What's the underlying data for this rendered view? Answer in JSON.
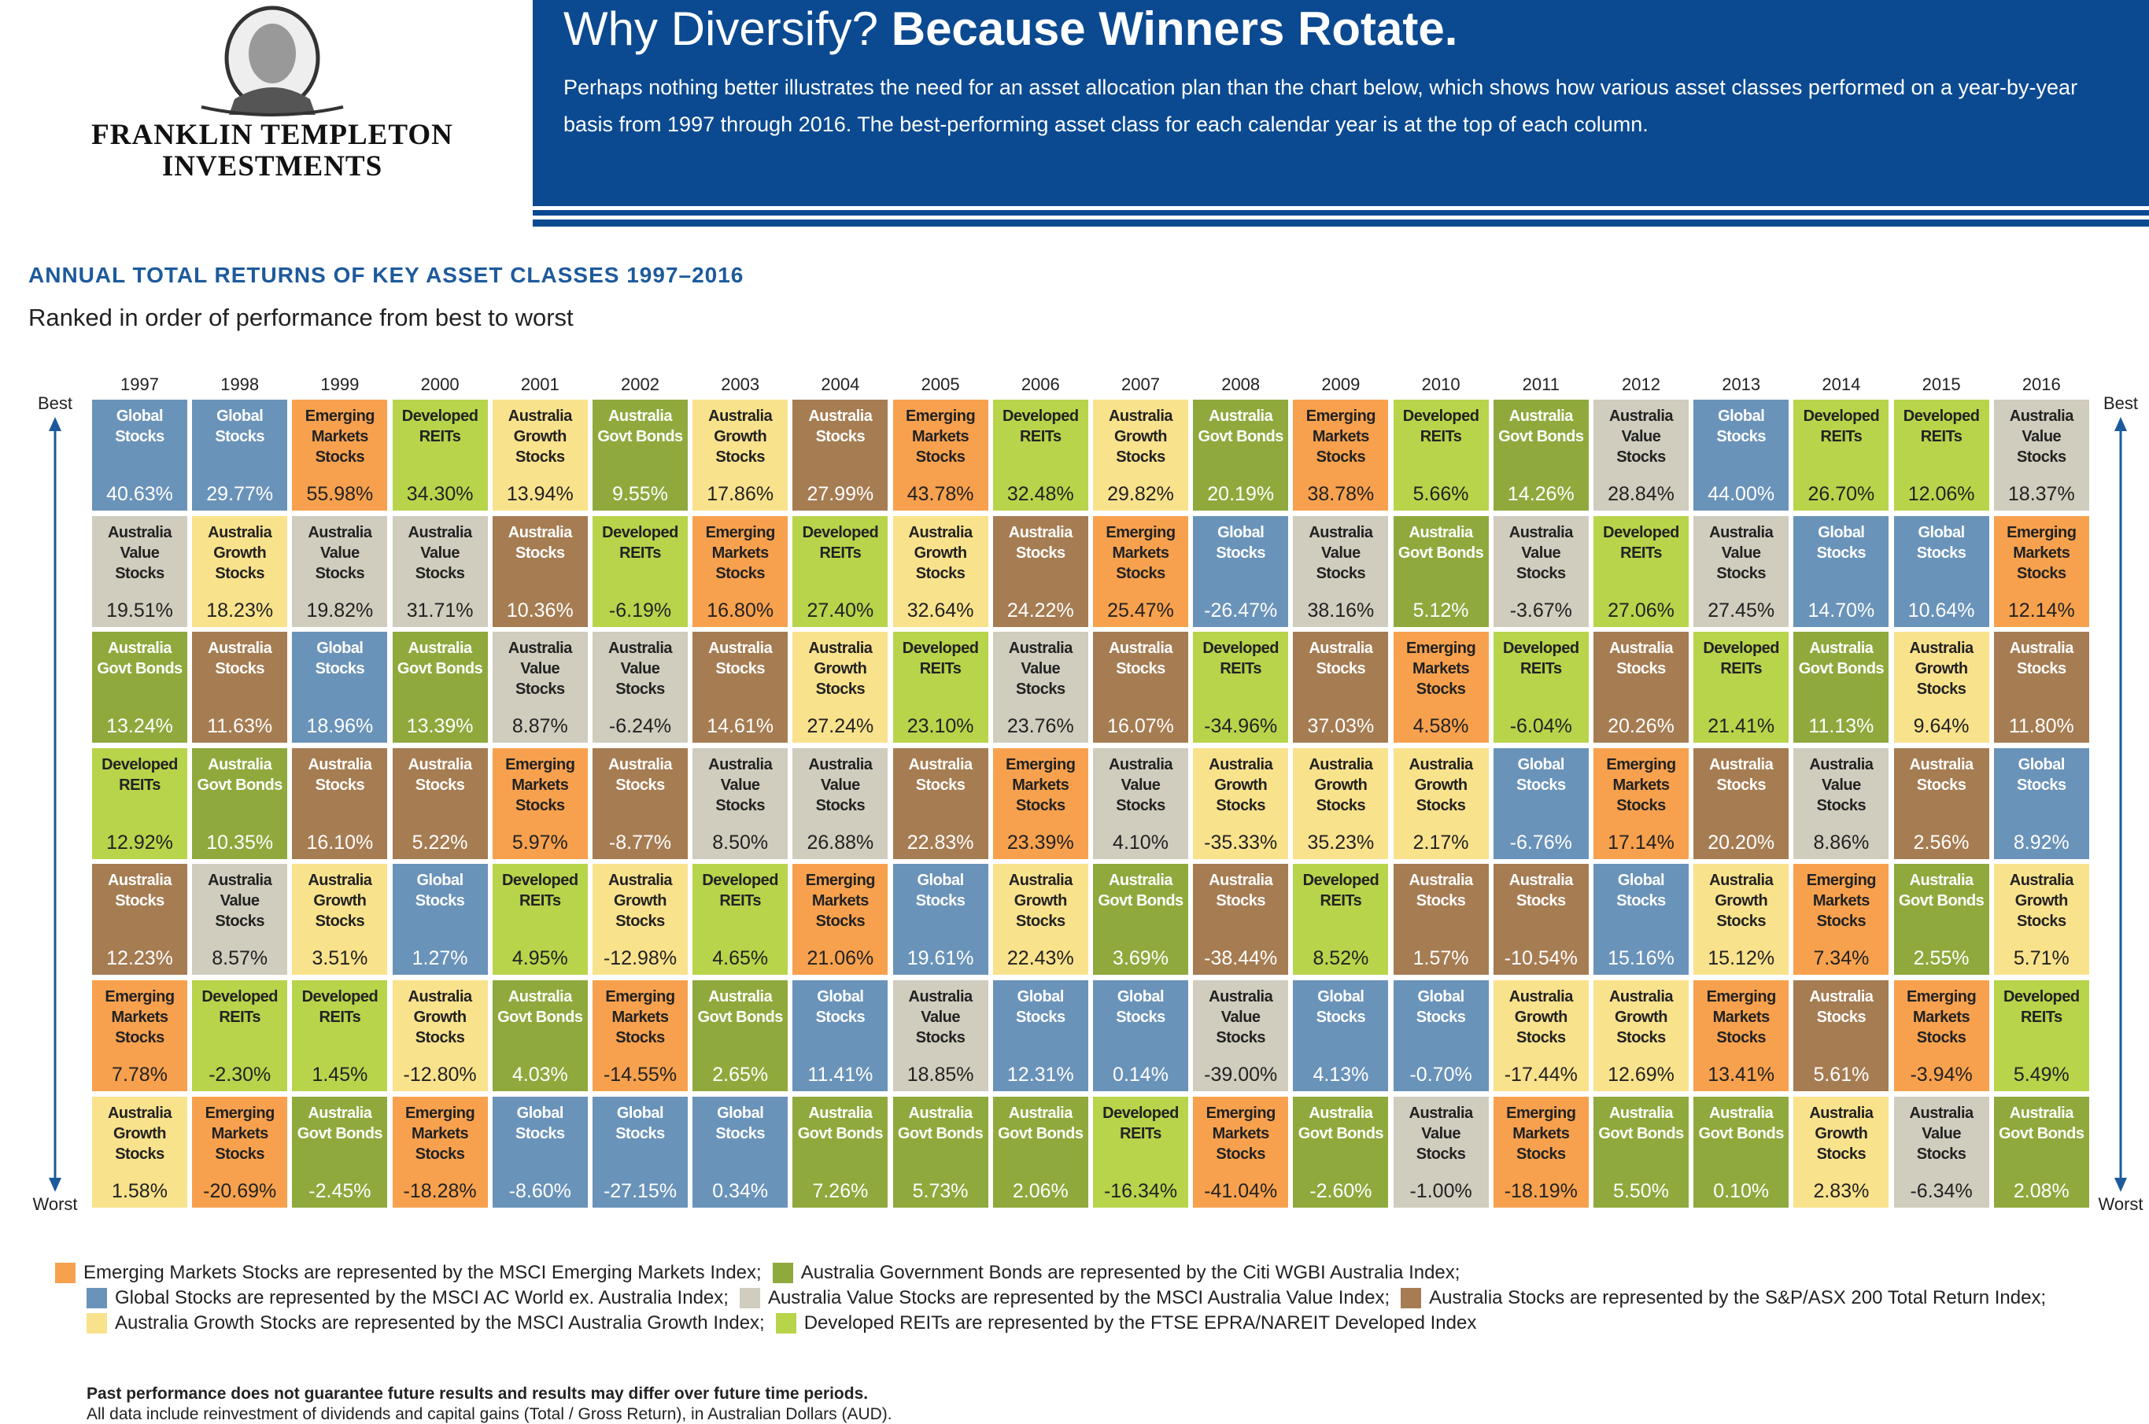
{
  "header": {
    "logo_lines": [
      "FRANKLIN TEMPLETON",
      "INVESTMENTS"
    ],
    "title_plain": "Why Diversify?",
    "title_bold": "Because Winners Rotate.",
    "intro": "Perhaps nothing better illustrates the need for an asset allocation plan than the chart below, which shows how various asset classes performed on a year-by-year basis from 1997 through 2016. The best-performing asset class for each calendar year is at the top of each column."
  },
  "chart": {
    "title": "ANNUAL TOTAL RETURNS OF KEY ASSET CLASSES 1997–2016",
    "subtitle": "Ranked in order of performance from best to worst",
    "best": "Best",
    "worst": "Worst",
    "asset_classes": [
      {
        "label": "Emerging Markets Stocks",
        "color": "#f7a14e",
        "text_color": "#222222",
        "legend": "Emerging Markets Stocks are represented by the MSCI Emerging Markets Index;"
      },
      {
        "label": "Australia Govt Bonds",
        "color": "#8fa93d",
        "text_color": "#ffffff",
        "legend": "Australia Government Bonds are represented by the Citi WGBI Australia Index;"
      },
      {
        "label": "Global Stocks",
        "color": "#6a93b9",
        "text_color": "#ffffff",
        "legend": "Global Stocks are represented by the MSCI AC World ex. Australia Index;"
      },
      {
        "label": "Australia Value Stocks",
        "color": "#d0ccbe",
        "text_color": "#222222",
        "legend": "Australia Value Stocks are represented by the MSCI Australia Value Index;"
      },
      {
        "label": "Australia Stocks",
        "color": "#a67c52",
        "text_color": "#ffffff",
        "legend": "Australia Stocks are represented by the S&P/ASX 200 Total Return Index;"
      },
      {
        "label": "Australia Growth Stocks",
        "color": "#f9e28c",
        "text_color": "#222222",
        "legend": "Australia Growth Stocks are represented by the MSCI Australia Growth Index;"
      },
      {
        "label": "Developed REITs",
        "color": "#b8d44b",
        "text_color": "#222222",
        "legend": "Developed REITs are represented by the FTSE EPRA/NAREIT Developed Index"
      }
    ],
    "years": [
      {
        "year": "1997",
        "cells": [
          [
            "Global Stocks",
            "40.63%"
          ],
          [
            "Australia Value Stocks",
            "19.51%"
          ],
          [
            "Australia Govt Bonds",
            "13.24%"
          ],
          [
            "Developed REITs",
            "12.92%"
          ],
          [
            "Australia Stocks",
            "12.23%"
          ],
          [
            "Emerging Markets Stocks",
            "7.78%"
          ],
          [
            "Australia Growth Stocks",
            "1.58%"
          ]
        ]
      },
      {
        "year": "1998",
        "cells": [
          [
            "Global Stocks",
            "29.77%"
          ],
          [
            "Australia Growth Stocks",
            "18.23%"
          ],
          [
            "Australia Stocks",
            "11.63%"
          ],
          [
            "Australia Govt Bonds",
            "10.35%"
          ],
          [
            "Australia Value Stocks",
            "8.57%"
          ],
          [
            "Developed REITs",
            "-2.30%"
          ],
          [
            "Emerging Markets Stocks",
            "-20.69%"
          ]
        ]
      },
      {
        "year": "1999",
        "cells": [
          [
            "Emerging Markets Stocks",
            "55.98%"
          ],
          [
            "Australia Value Stocks",
            "19.82%"
          ],
          [
            "Global Stocks",
            "18.96%"
          ],
          [
            "Australia Stocks",
            "16.10%"
          ],
          [
            "Australia Growth Stocks",
            "3.51%"
          ],
          [
            "Developed REITs",
            "1.45%"
          ],
          [
            "Australia Govt Bonds",
            "-2.45%"
          ]
        ]
      },
      {
        "year": "2000",
        "cells": [
          [
            "Developed REITs",
            "34.30%"
          ],
          [
            "Australia Value Stocks",
            "31.71%"
          ],
          [
            "Australia Govt Bonds",
            "13.39%"
          ],
          [
            "Australia Stocks",
            "5.22%"
          ],
          [
            "Global Stocks",
            "1.27%"
          ],
          [
            "Australia Growth Stocks",
            "-12.80%"
          ],
          [
            "Emerging Markets Stocks",
            "-18.28%"
          ]
        ]
      },
      {
        "year": "2001",
        "cells": [
          [
            "Australia Growth Stocks",
            "13.94%"
          ],
          [
            "Australia Stocks",
            "10.36%"
          ],
          [
            "Australia Value Stocks",
            "8.87%"
          ],
          [
            "Emerging Markets Stocks",
            "5.97%"
          ],
          [
            "Developed REITs",
            "4.95%"
          ],
          [
            "Australia Govt Bonds",
            "4.03%"
          ],
          [
            "Global Stocks",
            "-8.60%"
          ]
        ]
      },
      {
        "year": "2002",
        "cells": [
          [
            "Australia Govt Bonds",
            "9.55%"
          ],
          [
            "Developed REITs",
            "-6.19%"
          ],
          [
            "Australia Value Stocks",
            "-6.24%"
          ],
          [
            "Australia Stocks",
            "-8.77%"
          ],
          [
            "Australia Growth Stocks",
            "-12.98%"
          ],
          [
            "Emerging Markets Stocks",
            "-14.55%"
          ],
          [
            "Global Stocks",
            "-27.15%"
          ]
        ]
      },
      {
        "year": "2003",
        "cells": [
          [
            "Australia Growth Stocks",
            "17.86%"
          ],
          [
            "Emerging Markets Stocks",
            "16.80%"
          ],
          [
            "Australia Stocks",
            "14.61%"
          ],
          [
            "Australia Value Stocks",
            "8.50%"
          ],
          [
            "Developed REITs",
            "4.65%"
          ],
          [
            "Australia Govt Bonds",
            "2.65%"
          ],
          [
            "Global Stocks",
            "0.34%"
          ]
        ]
      },
      {
        "year": "2004",
        "cells": [
          [
            "Australia Stocks",
            "27.99%"
          ],
          [
            "Developed REITs",
            "27.40%"
          ],
          [
            "Australia Growth Stocks",
            "27.24%"
          ],
          [
            "Australia Value Stocks",
            "26.88%"
          ],
          [
            "Emerging Markets Stocks",
            "21.06%"
          ],
          [
            "Global Stocks",
            "11.41%"
          ],
          [
            "Australia Govt Bonds",
            "7.26%"
          ]
        ]
      },
      {
        "year": "2005",
        "cells": [
          [
            "Emerging Markets Stocks",
            "43.78%"
          ],
          [
            "Australia Growth Stocks",
            "32.64%"
          ],
          [
            "Developed REITs",
            "23.10%"
          ],
          [
            "Australia Stocks",
            "22.83%"
          ],
          [
            "Global Stocks",
            "19.61%"
          ],
          [
            "Australia Value Stocks",
            "18.85%"
          ],
          [
            "Australia Govt Bonds",
            "5.73%"
          ]
        ]
      },
      {
        "year": "2006",
        "cells": [
          [
            "Developed REITs",
            "32.48%"
          ],
          [
            "Australia Stocks",
            "24.22%"
          ],
          [
            "Australia Value Stocks",
            "23.76%"
          ],
          [
            "Emerging Markets Stocks",
            "23.39%"
          ],
          [
            "Australia Growth Stocks",
            "22.43%"
          ],
          [
            "Global Stocks",
            "12.31%"
          ],
          [
            "Australia Govt Bonds",
            "2.06%"
          ]
        ]
      },
      {
        "year": "2007",
        "cells": [
          [
            "Australia Growth Stocks",
            "29.82%"
          ],
          [
            "Emerging Markets Stocks",
            "25.47%"
          ],
          [
            "Australia Stocks",
            "16.07%"
          ],
          [
            "Australia Value Stocks",
            "4.10%"
          ],
          [
            "Australia Govt Bonds",
            "3.69%"
          ],
          [
            "Global Stocks",
            "0.14%"
          ],
          [
            "Developed REITs",
            "-16.34%"
          ]
        ]
      },
      {
        "year": "2008",
        "cells": [
          [
            "Australia Govt Bonds",
            "20.19%"
          ],
          [
            "Global Stocks",
            "-26.47%"
          ],
          [
            "Developed REITs",
            "-34.96%"
          ],
          [
            "Australia Growth Stocks",
            "-35.33%"
          ],
          [
            "Australia Stocks",
            "-38.44%"
          ],
          [
            "Australia Value Stocks",
            "-39.00%"
          ],
          [
            "Emerging Markets Stocks",
            "-41.04%"
          ]
        ]
      },
      {
        "year": "2009",
        "cells": [
          [
            "Emerging Markets Stocks",
            "38.78%"
          ],
          [
            "Australia Value Stocks",
            "38.16%"
          ],
          [
            "Australia Stocks",
            "37.03%"
          ],
          [
            "Australia Growth Stocks",
            "35.23%"
          ],
          [
            "Developed REITs",
            "8.52%"
          ],
          [
            "Global Stocks",
            "4.13%"
          ],
          [
            "Australia Govt Bonds",
            "-2.60%"
          ]
        ]
      },
      {
        "year": "2010",
        "cells": [
          [
            "Developed REITs",
            "5.66%"
          ],
          [
            "Australia Govt Bonds",
            "5.12%"
          ],
          [
            "Emerging Markets Stocks",
            "4.58%"
          ],
          [
            "Australia Growth Stocks",
            "2.17%"
          ],
          [
            "Australia Stocks",
            "1.57%"
          ],
          [
            "Global Stocks",
            "-0.70%"
          ],
          [
            "Australia Value Stocks",
            "-1.00%"
          ]
        ]
      },
      {
        "year": "2011",
        "cells": [
          [
            "Australia Govt Bonds",
            "14.26%"
          ],
          [
            "Australia Value Stocks",
            "-3.67%"
          ],
          [
            "Developed REITs",
            "-6.04%"
          ],
          [
            "Global Stocks",
            "-6.76%"
          ],
          [
            "Australia Stocks",
            "-10.54%"
          ],
          [
            "Australia Growth Stocks",
            "-17.44%"
          ],
          [
            "Emerging Markets Stocks",
            "-18.19%"
          ]
        ]
      },
      {
        "year": "2012",
        "cells": [
          [
            "Australia Value Stocks",
            "28.84%"
          ],
          [
            "Developed REITs",
            "27.06%"
          ],
          [
            "Australia Stocks",
            "20.26%"
          ],
          [
            "Emerging Markets Stocks",
            "17.14%"
          ],
          [
            "Global Stocks",
            "15.16%"
          ],
          [
            "Australia Growth Stocks",
            "12.69%"
          ],
          [
            "Australia Govt Bonds",
            "5.50%"
          ]
        ]
      },
      {
        "year": "2013",
        "cells": [
          [
            "Global Stocks",
            "44.00%"
          ],
          [
            "Australia Value Stocks",
            "27.45%"
          ],
          [
            "Developed REITs",
            "21.41%"
          ],
          [
            "Australia Stocks",
            "20.20%"
          ],
          [
            "Australia Growth Stocks",
            "15.12%"
          ],
          [
            "Emerging Markets Stocks",
            "13.41%"
          ],
          [
            "Australia Govt Bonds",
            "0.10%"
          ]
        ]
      },
      {
        "year": "2014",
        "cells": [
          [
            "Developed REITs",
            "26.70%"
          ],
          [
            "Global Stocks",
            "14.70%"
          ],
          [
            "Australia Govt Bonds",
            "11.13%"
          ],
          [
            "Australia Value Stocks",
            "8.86%"
          ],
          [
            "Emerging Markets Stocks",
            "7.34%"
          ],
          [
            "Australia Stocks",
            "5.61%"
          ],
          [
            "Australia Growth Stocks",
            "2.83%"
          ]
        ]
      },
      {
        "year": "2015",
        "cells": [
          [
            "Developed REITs",
            "12.06%"
          ],
          [
            "Global Stocks",
            "10.64%"
          ],
          [
            "Australia Growth Stocks",
            "9.64%"
          ],
          [
            "Australia Stocks",
            "2.56%"
          ],
          [
            "Australia Govt Bonds",
            "2.55%"
          ],
          [
            "Emerging Markets Stocks",
            "-3.94%"
          ],
          [
            "Australia Value Stocks",
            "-6.34%"
          ]
        ]
      },
      {
        "year": "2016",
        "cells": [
          [
            "Australia Value Stocks",
            "18.37%"
          ],
          [
            "Emerging Markets Stocks",
            "12.14%"
          ],
          [
            "Australia Stocks",
            "11.80%"
          ],
          [
            "Global Stocks",
            "8.92%"
          ],
          [
            "Australia Growth Stocks",
            "5.71%"
          ],
          [
            "Developed REITs",
            "5.49%"
          ],
          [
            "Australia Govt Bonds",
            "2.08%"
          ]
        ]
      }
    ]
  },
  "footer": {
    "note": "Past performance does not guarantee future results and results may differ over future time periods.",
    "detail": "All data include reinvestment of dividends and capital gains (Total / Gross Return), in Australian Dollars (AUD)."
  }
}
